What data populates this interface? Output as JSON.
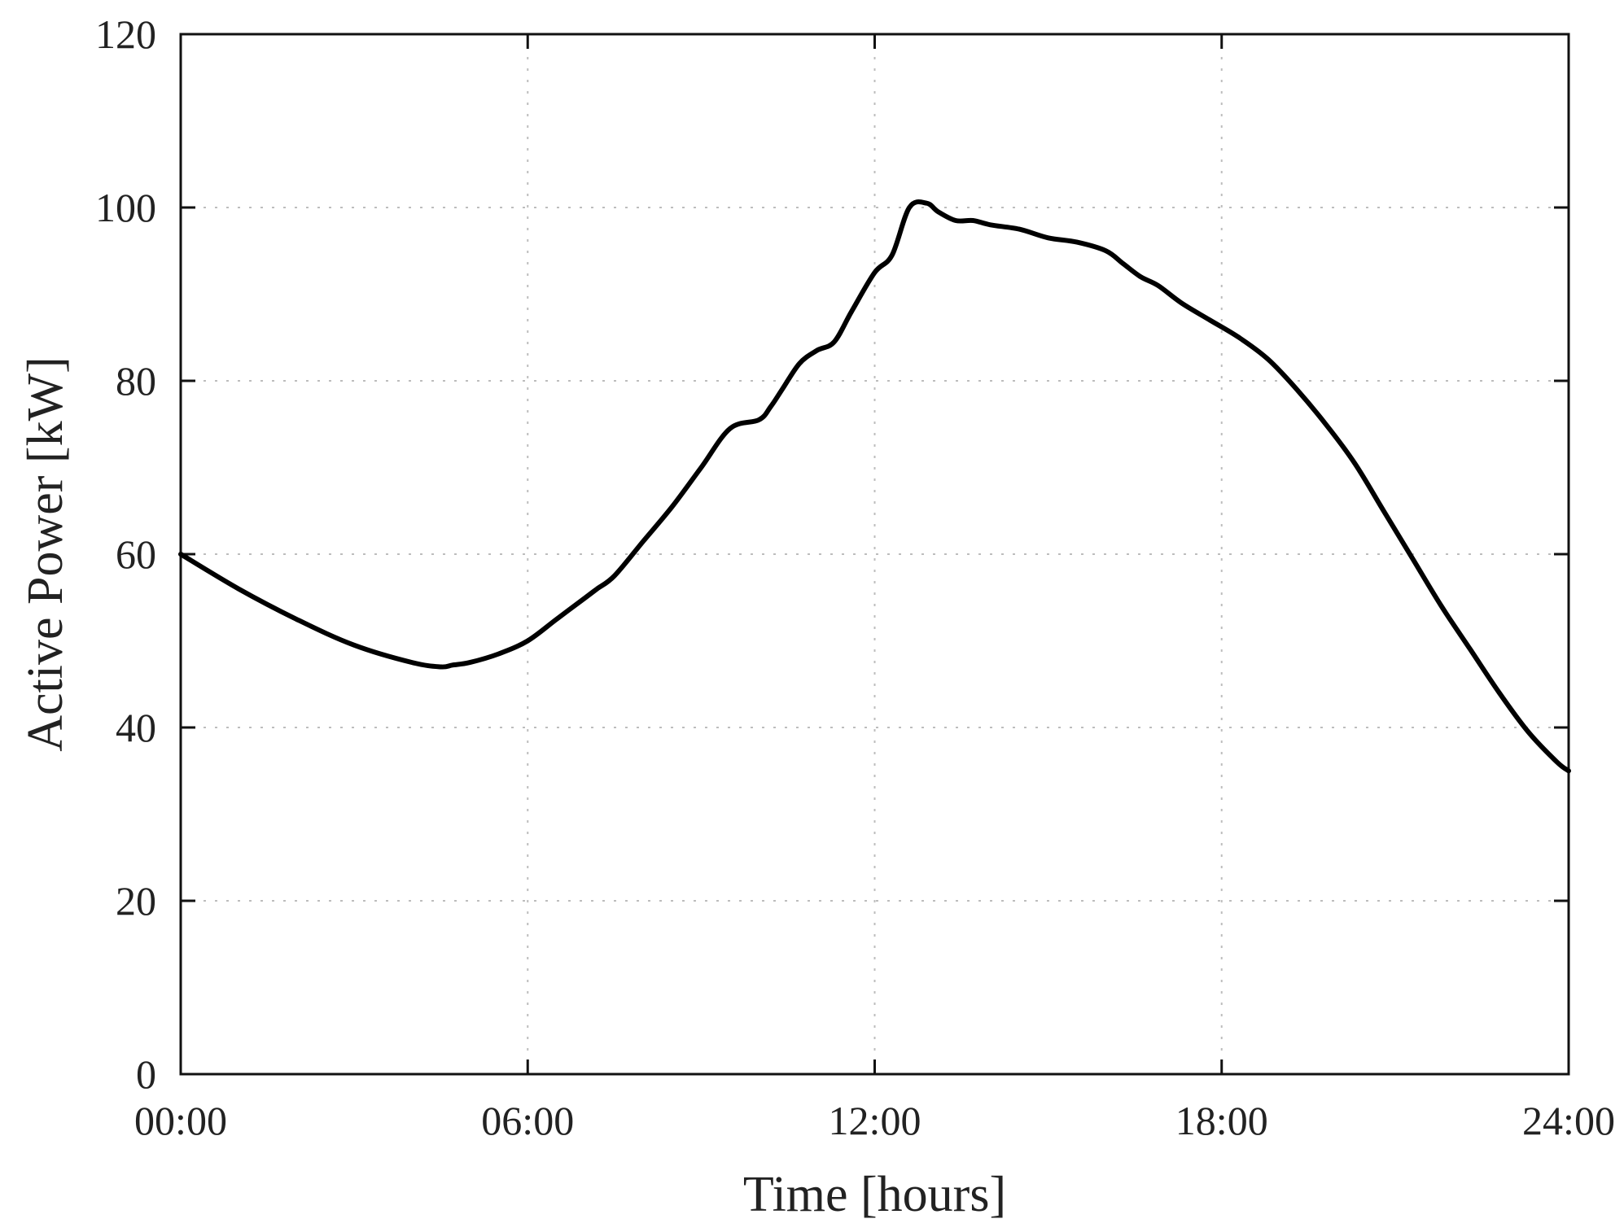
{
  "chart_data": {
    "type": "line",
    "title": "",
    "xlabel": "Time [hours]",
    "ylabel": "Active Power [kW]",
    "xlim": [
      0,
      24
    ],
    "ylim": [
      0,
      120
    ],
    "x_ticks": [
      {
        "value": 0,
        "label": "00:00"
      },
      {
        "value": 6,
        "label": "06:00"
      },
      {
        "value": 12,
        "label": "12:00"
      },
      {
        "value": 18,
        "label": "18:00"
      },
      {
        "value": 24,
        "label": "24:00"
      }
    ],
    "y_ticks": [
      {
        "value": 0,
        "label": "0"
      },
      {
        "value": 20,
        "label": "20"
      },
      {
        "value": 40,
        "label": "40"
      },
      {
        "value": 60,
        "label": "60"
      },
      {
        "value": 80,
        "label": "80"
      },
      {
        "value": 100,
        "label": "100"
      },
      {
        "value": 120,
        "label": "120"
      }
    ],
    "grid": true,
    "line_color": "#000000",
    "series": [
      {
        "x": [
          0,
          1,
          2,
          3,
          4,
          4.5,
          4.7,
          5,
          5.5,
          6,
          6.5,
          7,
          7.2,
          7.5,
          8,
          8.5,
          9,
          9.5,
          10,
          10.2,
          10.4,
          10.7,
          11,
          11.3,
          11.6,
          12,
          12.3,
          12.6,
          12.9,
          13.1,
          13.4,
          13.7,
          14,
          14.5,
          15,
          15.5,
          16,
          16.3,
          16.6,
          16.9,
          17.3,
          17.8,
          18.3,
          18.8,
          19.3,
          19.8,
          20.3,
          20.8,
          21.3,
          21.8,
          22.3,
          22.8,
          23.3,
          23.8,
          24
        ],
        "y": [
          60,
          56,
          52.5,
          49.5,
          47.5,
          47,
          47.2,
          47.5,
          48.5,
          50,
          52.5,
          55,
          56,
          57.5,
          61.5,
          65.5,
          70,
          74.5,
          75.5,
          77,
          79,
          82,
          83.5,
          84.5,
          88,
          92.5,
          94.5,
          100,
          100.5,
          99.5,
          98.5,
          98.5,
          98,
          97.5,
          96.5,
          96,
          95,
          93.5,
          92,
          91,
          89,
          87,
          85,
          82.5,
          79,
          75,
          70.5,
          65,
          59.5,
          54,
          49,
          44,
          39.5,
          36,
          35
        ]
      }
    ]
  }
}
